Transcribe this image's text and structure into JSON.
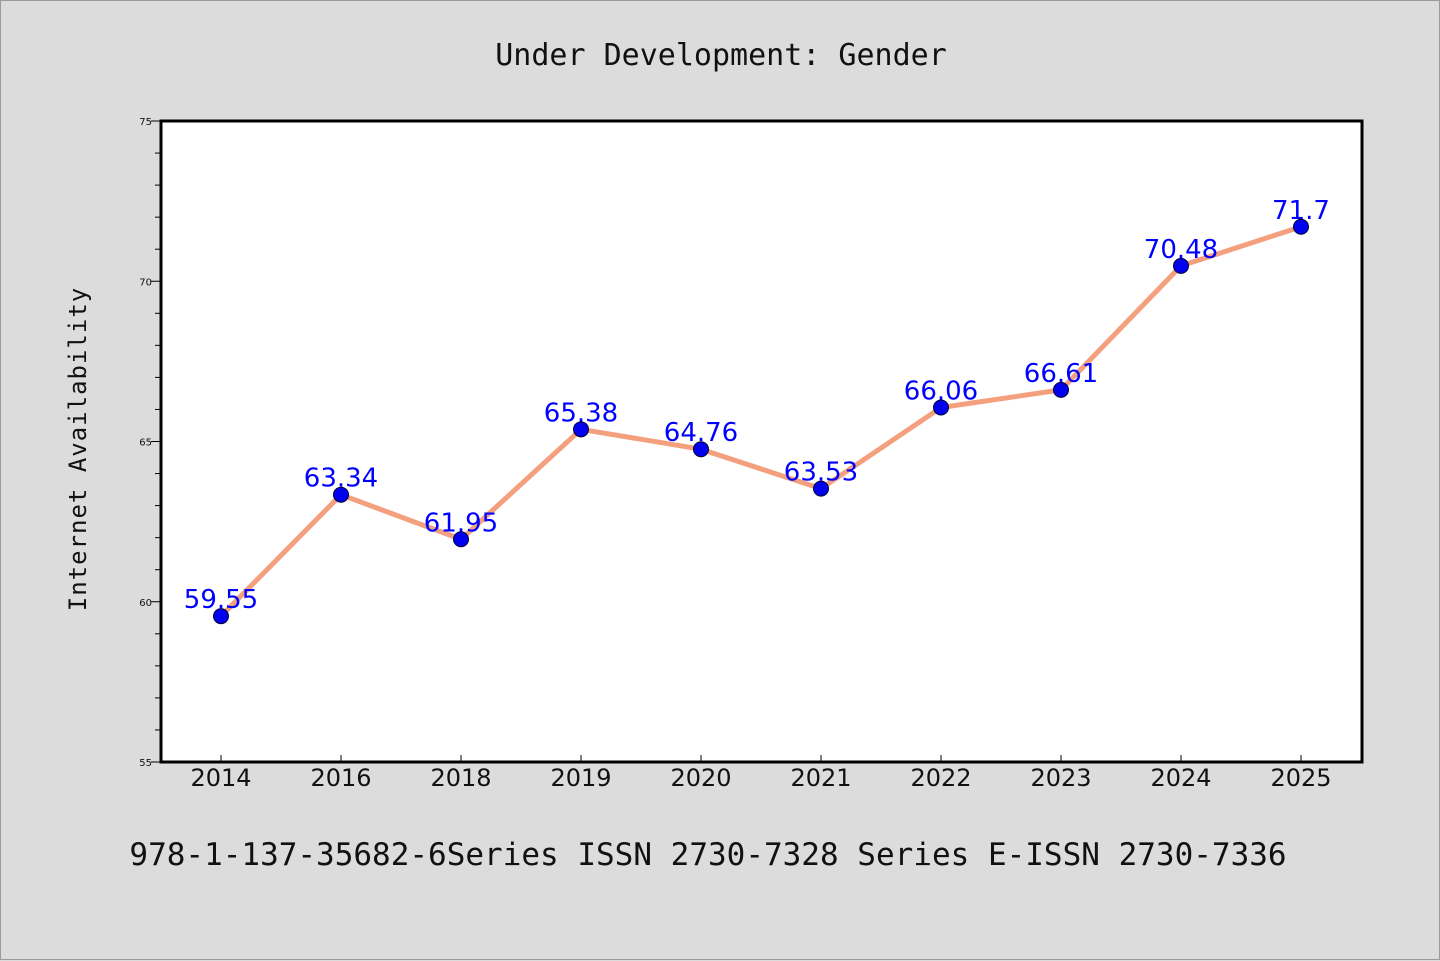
{
  "chart_data": {
    "type": "line",
    "title": "Under Development: Gender",
    "ylabel": "Internet Availability",
    "xlabel": "",
    "footer": "978-1-137-35682-6Series ISSN 2730-7328 Series E-ISSN 2730-7336",
    "categories": [
      "2014",
      "2016",
      "2018",
      "2019",
      "2020",
      "2021",
      "2022",
      "2023",
      "2024",
      "2025"
    ],
    "series": [
      {
        "values": [
          59.55,
          63.34,
          61.95,
          65.38,
          64.76,
          63.53,
          66.06,
          66.61,
          70.48,
          71.7
        ],
        "data_labels": [
          "59.55",
          "63.34",
          "61.95",
          "65.38",
          "64.76",
          "63.53",
          "66.06",
          "66.61",
          "70.48",
          "71.7"
        ],
        "line_color": "#f4a07e",
        "marker_color": "#0000ee"
      }
    ],
    "ylim": [
      55,
      75
    ],
    "y_major_ticks": [
      55,
      60,
      65,
      70,
      75
    ],
    "y_minor_step": 1,
    "grid": false,
    "legend": "none",
    "background": "#dcdcdc",
    "plot_background": "#ffffff"
  }
}
